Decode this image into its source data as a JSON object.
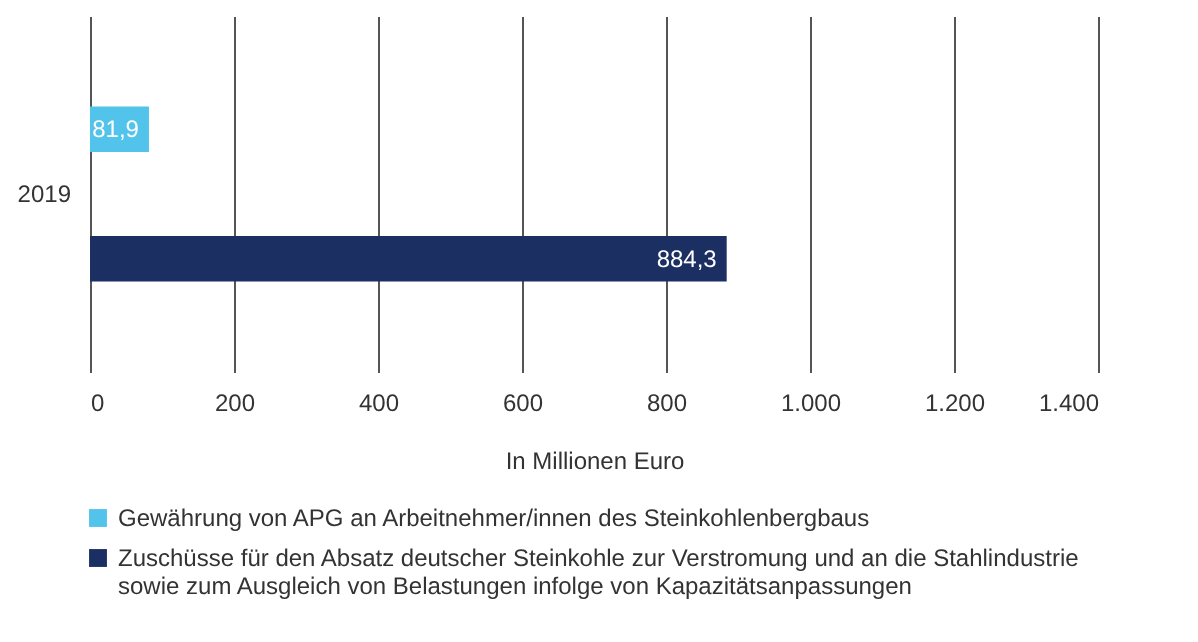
{
  "chart_data": {
    "type": "bar",
    "orientation": "horizontal",
    "categories": [
      "2019"
    ],
    "series": [
      {
        "name": "Gewährung von APG an Arbeitnehmer/innen des Steinkohlenbergbaus",
        "color": "#52c3ea",
        "values": [
          81.9
        ],
        "value_labels": [
          "81,9"
        ]
      },
      {
        "name": "Zuschüsse für den Absatz deutscher Steinkohle zur Verstromung und an die Stahlindustrie sowie zum Ausgleich von Belastungen infolge von Kapazitätsanpassungen",
        "color": "#1b2f63",
        "values": [
          884.3
        ],
        "value_labels": [
          "884,3"
        ]
      }
    ],
    "xlabel": "In Millionen Euro",
    "xlim": [
      0,
      1400
    ],
    "xticks": [
      0,
      200,
      400,
      600,
      800,
      {
        "value": 1000,
        "label": "1.000"
      },
      {
        "value": 1200,
        "label": "1.200"
      },
      {
        "value": 1400,
        "label": "1.400"
      }
    ],
    "grid": "x",
    "legend": "bottom"
  }
}
